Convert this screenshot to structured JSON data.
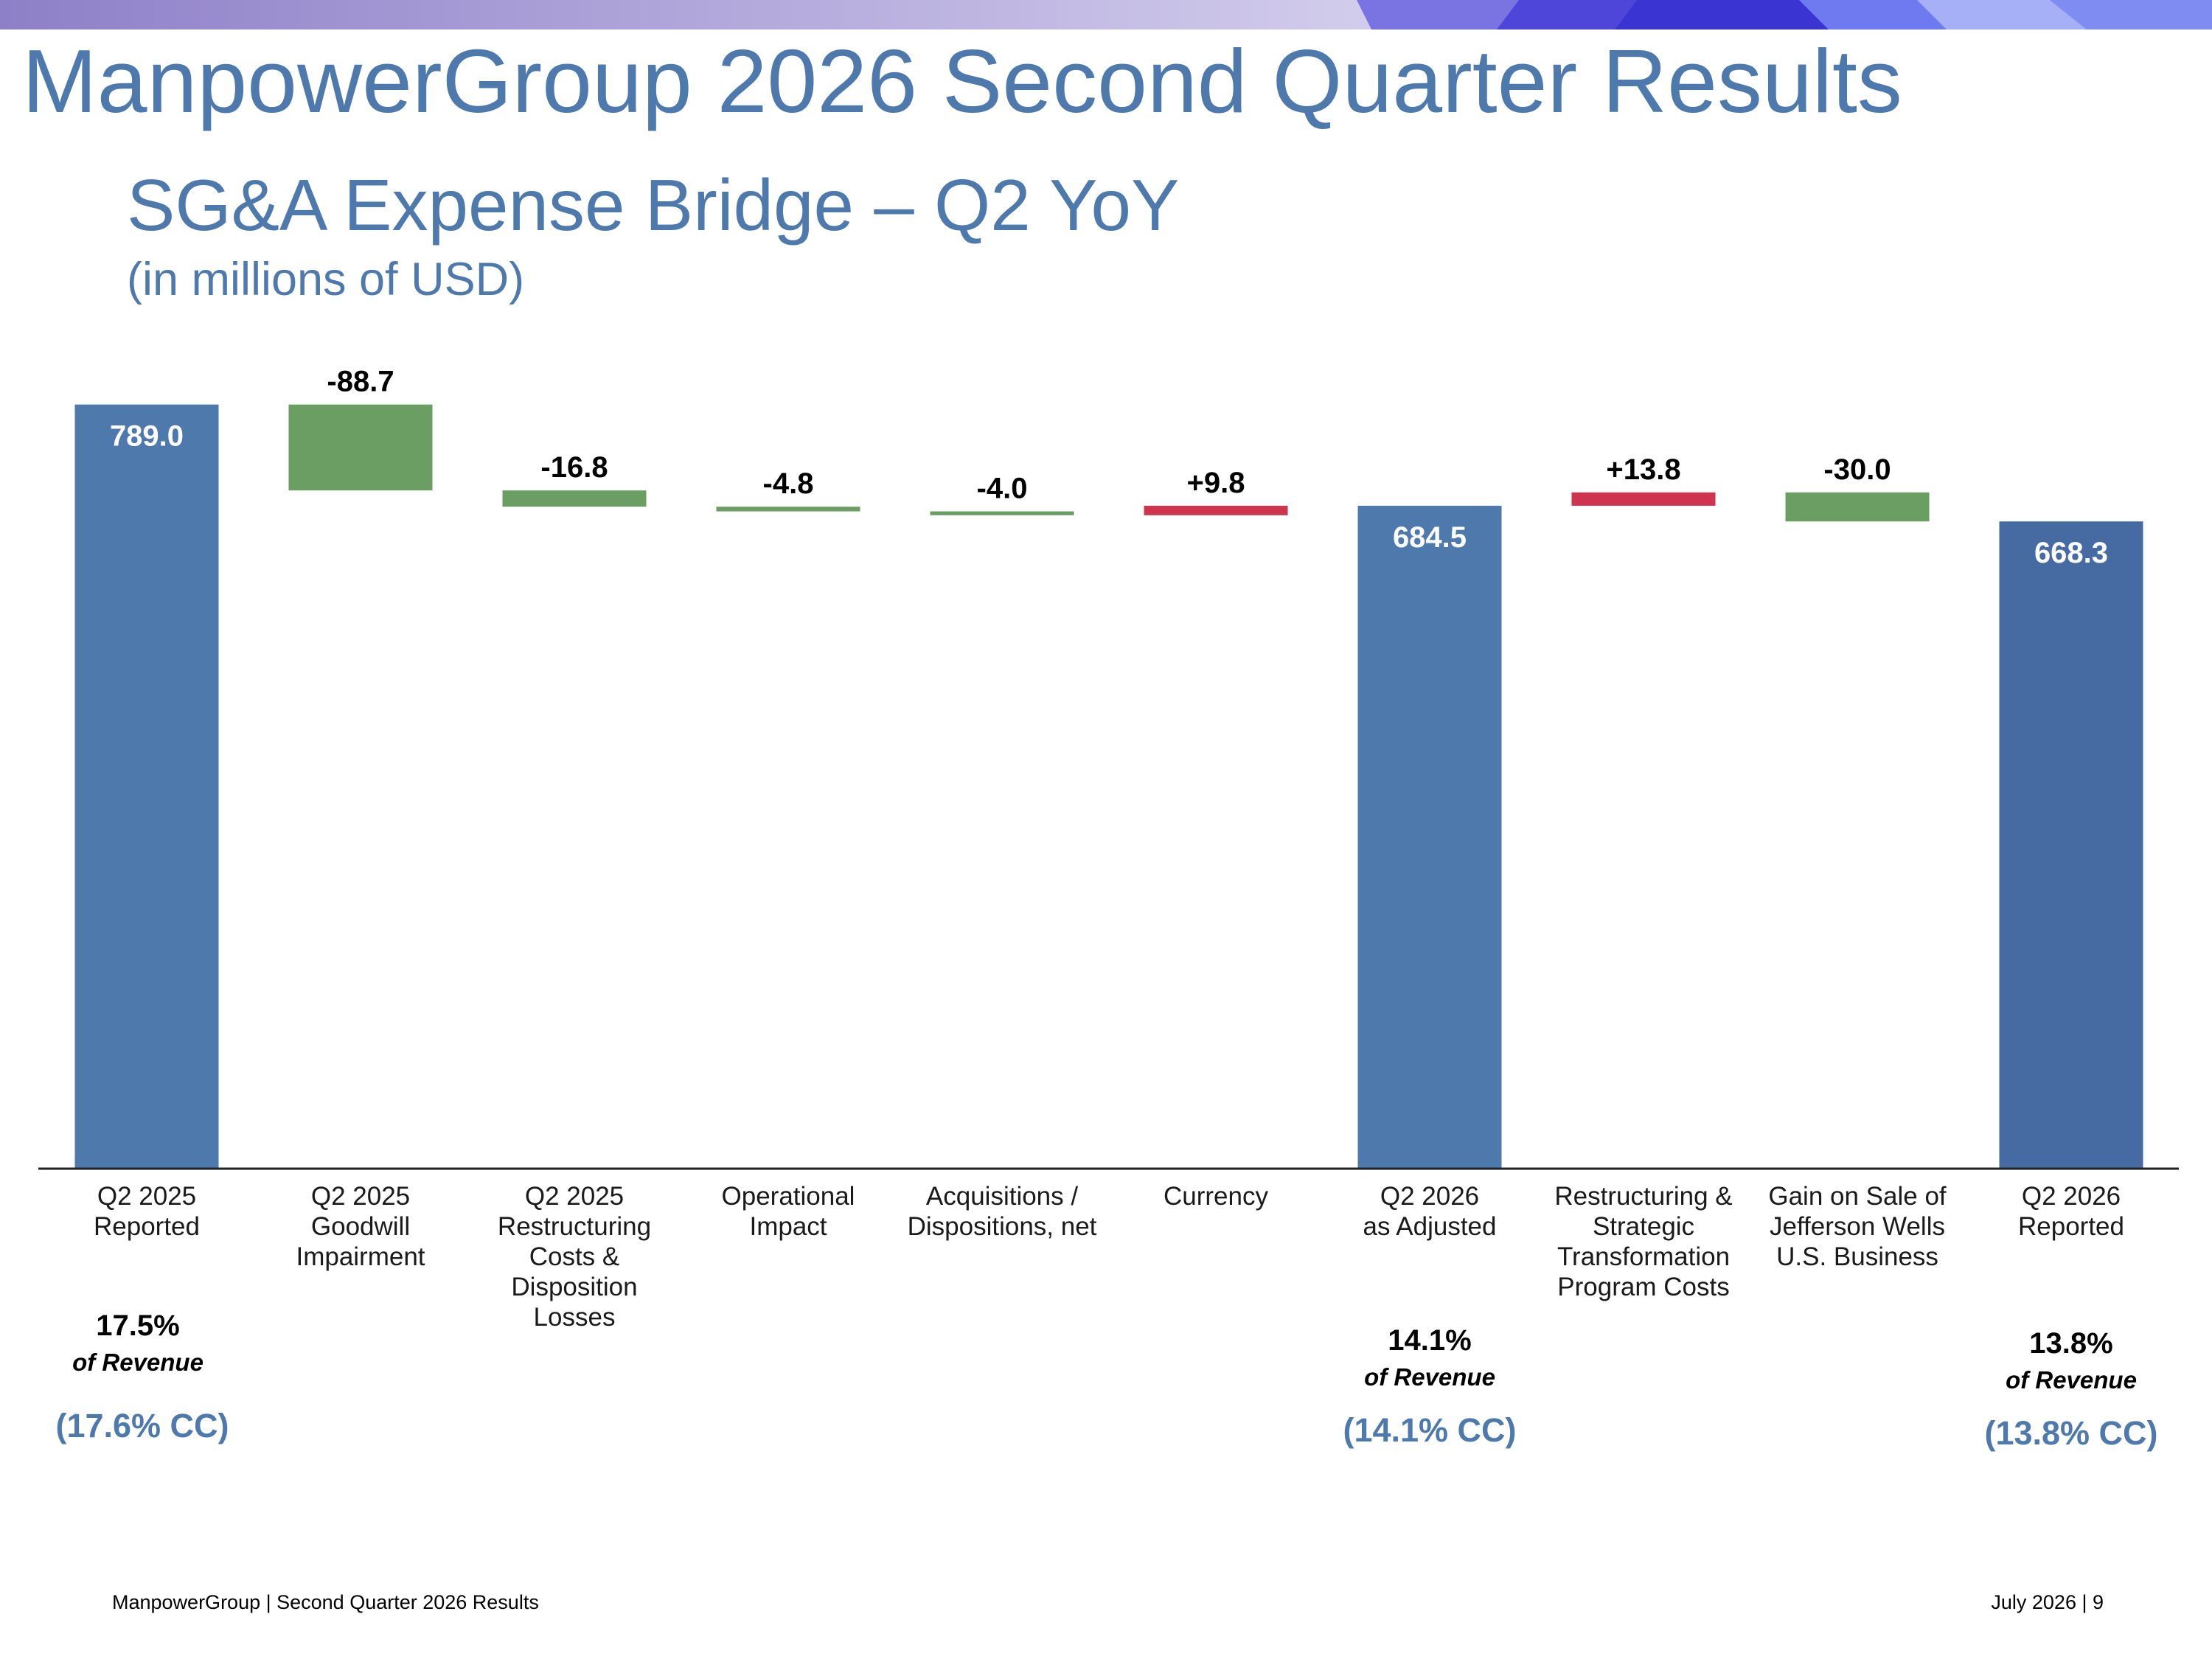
{
  "slide": {
    "title": "ManpowerGroup 2026 Second Quarter Results",
    "subtitle": "SG&A Expense Bridge – Q2 YoY",
    "units": "(in millions of USD)"
  },
  "colors": {
    "title": "#4E79AD",
    "total_bar": "#4E79AD",
    "final_bar": "#466BA2",
    "decrease_bar": "#6A9E63",
    "increase_bar": "#CF344E"
  },
  "chart_data": {
    "type": "bar",
    "subtype": "waterfall",
    "categories": [
      [
        "Q2 2025",
        "Reported"
      ],
      [
        "Q2 2025",
        "Goodwill",
        "Impairment"
      ],
      [
        "Q2 2025",
        "Restructuring",
        "Costs &",
        "Disposition",
        "Losses"
      ],
      [
        "Operational",
        "Impact"
      ],
      [
        "Acquisitions /",
        "Dispositions, net"
      ],
      [
        "Currency"
      ],
      [
        "Q2 2026",
        "as Adjusted"
      ],
      [
        "Restructuring &",
        "Strategic",
        "Transformation",
        "Program Costs"
      ],
      [
        "Gain on Sale of",
        "Jefferson Wells",
        "U.S. Business"
      ],
      [
        "Q2 2026",
        "Reported"
      ]
    ],
    "values": [
      789.0,
      -88.7,
      -16.8,
      -4.8,
      -4.0,
      9.8,
      684.5,
      13.8,
      -30.0,
      668.3
    ],
    "kinds": [
      "total",
      "delta",
      "delta",
      "delta",
      "delta",
      "delta",
      "total",
      "delta",
      "delta",
      "total"
    ],
    "data_labels": [
      "789.0",
      "-88.7",
      "-16.8",
      "-4.8",
      "-4.0",
      "+9.8",
      "684.5",
      "+13.8",
      "-30.0",
      "668.3"
    ],
    "ylim": [
      0,
      800
    ],
    "grid": false,
    "legend": "none"
  },
  "revenue_notes": [
    {
      "index": 0,
      "pct": "17.5%",
      "of": "of Revenue",
      "cc": "(17.6% CC)"
    },
    {
      "index": 6,
      "pct": "14.1%",
      "of": "of Revenue",
      "cc": "(14.1% CC)"
    },
    {
      "index": 9,
      "pct": "13.8%",
      "of": "of Revenue",
      "cc": "(13.8% CC)"
    }
  ],
  "footer": {
    "left": "ManpowerGroup  |  Second Quarter 2026 Results",
    "right": "July 2026   |   9"
  }
}
